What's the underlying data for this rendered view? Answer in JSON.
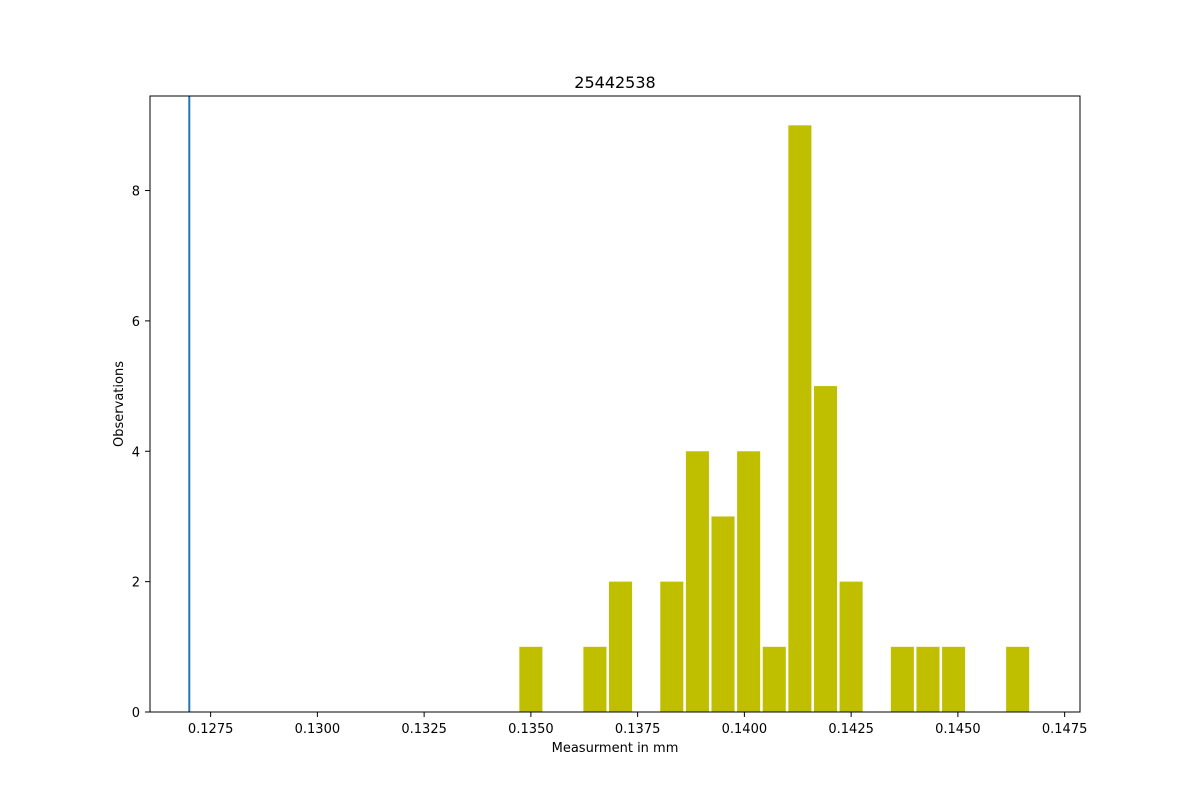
{
  "chart_data": {
    "type": "bar",
    "title": "25442538",
    "xlabel": "Measurment in mm",
    "ylabel": "Observations",
    "xlim": [
      0.12608,
      0.14786
    ],
    "ylim": [
      0,
      9.45
    ],
    "xticks": [
      "0.1275",
      "0.1300",
      "0.1325",
      "0.1350",
      "0.1375",
      "0.1400",
      "0.1425",
      "0.1450",
      "0.1475"
    ],
    "yticks": [
      "0",
      "2",
      "4",
      "6",
      "8"
    ],
    "bin_width": 0.0006,
    "bars_color": "#bfbf00",
    "bars": [
      {
        "x": 0.135,
        "count": 1
      },
      {
        "x": 0.1365,
        "count": 1
      },
      {
        "x": 0.1371,
        "count": 2
      },
      {
        "x": 0.1383,
        "count": 2
      },
      {
        "x": 0.1389,
        "count": 4
      },
      {
        "x": 0.1395,
        "count": 3
      },
      {
        "x": 0.1401,
        "count": 4
      },
      {
        "x": 0.1407,
        "count": 1
      },
      {
        "x": 0.1413,
        "count": 9
      },
      {
        "x": 0.1419,
        "count": 5
      },
      {
        "x": 0.1425,
        "count": 2
      },
      {
        "x": 0.1437,
        "count": 1
      },
      {
        "x": 0.1443,
        "count": 1
      },
      {
        "x": 0.1449,
        "count": 1
      },
      {
        "x": 0.1464,
        "count": 1
      }
    ],
    "reference_line": {
      "x": 0.127,
      "color": "#1f77b4"
    },
    "grid": false,
    "legend": "none"
  }
}
